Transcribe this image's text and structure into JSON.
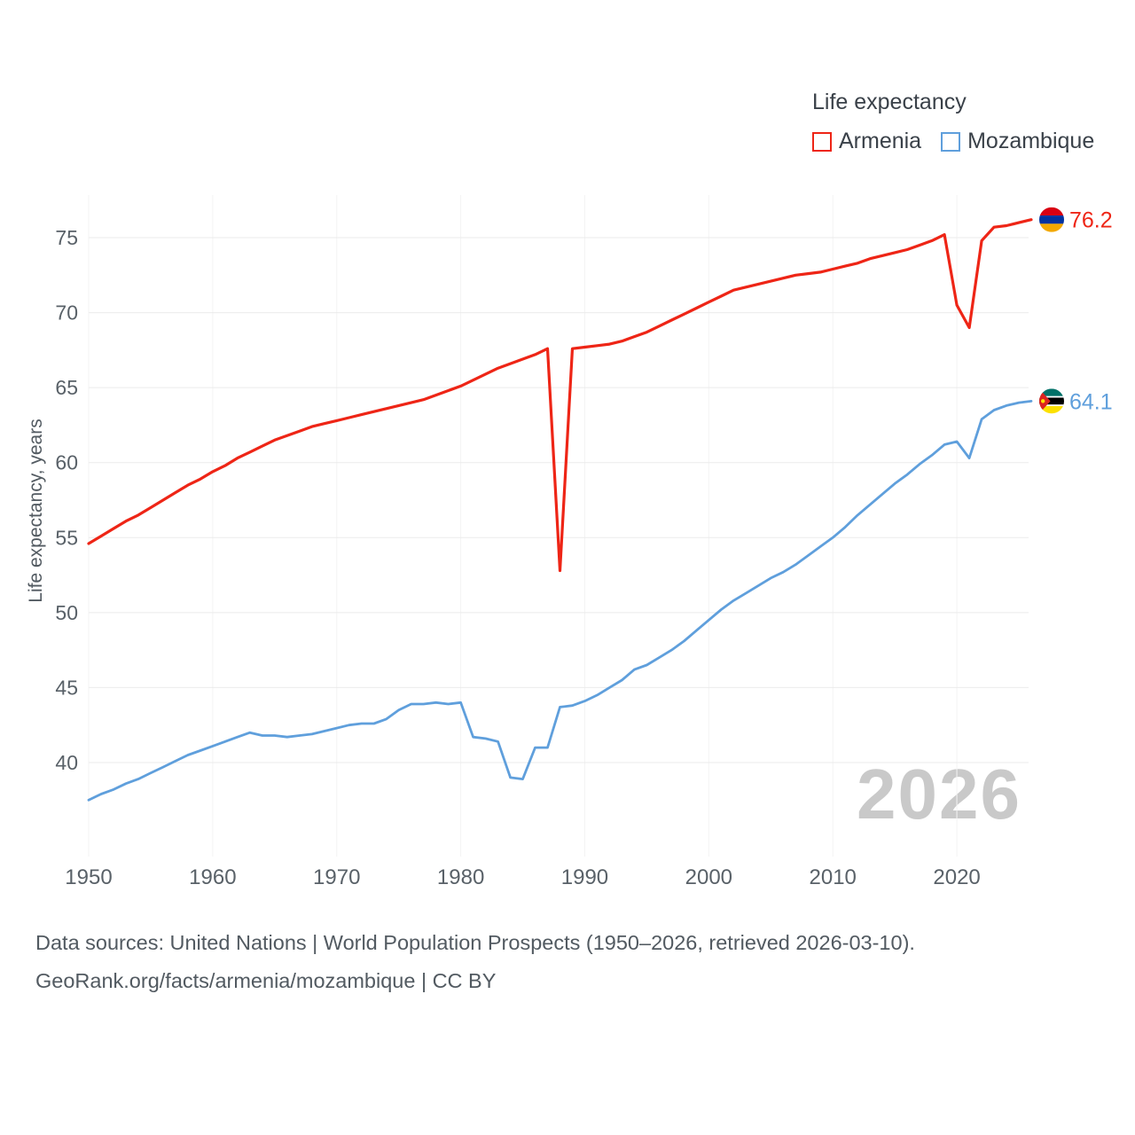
{
  "legend": {
    "title": "Life expectancy",
    "items": [
      {
        "label": "Armenia",
        "color": "#ee2516"
      },
      {
        "label": "Mozambique",
        "color": "#5f9fdc"
      }
    ]
  },
  "watermark": "2026",
  "footer": {
    "line1": "Data sources: United Nations | World Population Prospects (1950–2026, retrieved 2026-03-10).",
    "line2": "GeoRank.org/facts/armenia/mozambique | CC BY"
  },
  "chart_data": {
    "type": "line",
    "title": "Life expectancy",
    "xlabel": "",
    "ylabel": "Life expectancy, years",
    "xlim": [
      1950,
      2026
    ],
    "ylim": [
      36.5,
      78
    ],
    "x_ticks": [
      1950,
      1960,
      1970,
      1980,
      1990,
      2000,
      2010,
      2020
    ],
    "y_ticks": [
      40,
      45,
      50,
      55,
      60,
      65,
      70,
      75
    ],
    "grid": true,
    "legend_position": "top-right",
    "x_start": 1950,
    "x_step": 1,
    "series": [
      {
        "name": "Armenia",
        "color": "#ee2516",
        "flag": "armenia",
        "stroke_width": 3.2,
        "end_label": "76.2",
        "values": [
          54.6,
          55.1,
          55.6,
          56.1,
          56.5,
          57.0,
          57.5,
          58.0,
          58.5,
          58.9,
          59.4,
          59.8,
          60.3,
          60.7,
          61.1,
          61.5,
          61.8,
          62.1,
          62.4,
          62.6,
          62.8,
          63.0,
          63.2,
          63.4,
          63.6,
          63.8,
          64.0,
          64.2,
          64.5,
          64.8,
          65.1,
          65.5,
          65.9,
          66.3,
          66.6,
          66.9,
          67.2,
          67.6,
          52.8,
          67.6,
          67.7,
          67.8,
          67.9,
          68.1,
          68.4,
          68.7,
          69.1,
          69.5,
          69.9,
          70.3,
          70.7,
          71.1,
          71.5,
          71.7,
          71.9,
          72.1,
          72.3,
          72.5,
          72.6,
          72.7,
          72.9,
          73.1,
          73.3,
          73.6,
          73.8,
          74.0,
          74.2,
          74.5,
          74.8,
          75.2,
          70.5,
          69.0,
          74.8,
          75.7,
          75.8,
          76.0,
          76.2
        ]
      },
      {
        "name": "Mozambique",
        "color": "#5f9fdc",
        "flag": "mozambique",
        "stroke_width": 2.8,
        "end_label": "64.1",
        "values": [
          37.5,
          37.9,
          38.2,
          38.6,
          38.9,
          39.3,
          39.7,
          40.1,
          40.5,
          40.8,
          41.1,
          41.4,
          41.7,
          42.0,
          41.8,
          41.8,
          41.7,
          41.8,
          41.9,
          42.1,
          42.3,
          42.5,
          42.6,
          42.6,
          42.9,
          43.5,
          43.9,
          43.9,
          44.0,
          43.9,
          44.0,
          41.7,
          41.6,
          41.4,
          39.0,
          38.9,
          41.0,
          41.0,
          43.7,
          43.8,
          44.1,
          44.5,
          45.0,
          45.5,
          46.2,
          46.5,
          47.0,
          47.5,
          48.1,
          48.8,
          49.5,
          50.2,
          50.8,
          51.3,
          51.8,
          52.3,
          52.7,
          53.2,
          53.8,
          54.4,
          55.0,
          55.7,
          56.5,
          57.2,
          57.9,
          58.6,
          59.2,
          59.9,
          60.5,
          61.2,
          61.4,
          60.3,
          62.9,
          63.5,
          63.8,
          64.0,
          64.1
        ]
      }
    ]
  }
}
